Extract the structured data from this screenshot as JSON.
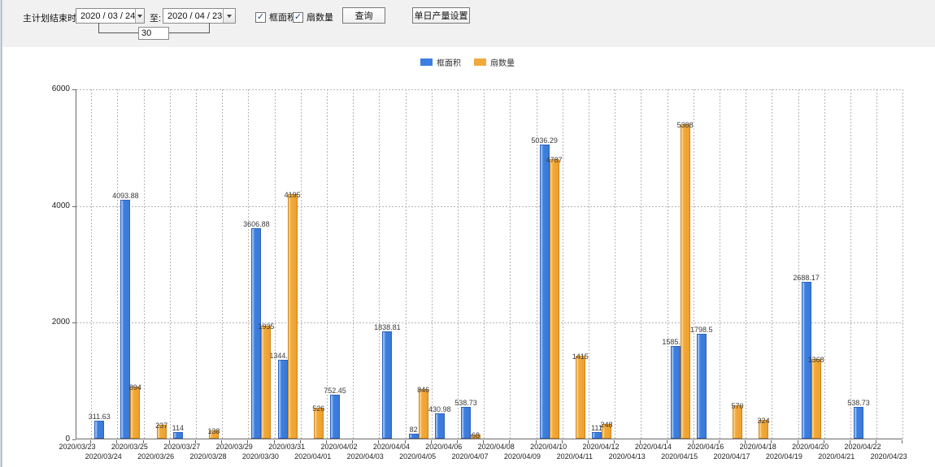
{
  "form": {
    "end_time_label": "主计划结束时间:",
    "date_from": "2020 / 03 / 24",
    "to_label": "至:",
    "date_to": "2020 / 04 / 23",
    "interval_value": "30",
    "series1_checkbox_label": "框面积",
    "series1_checked": true,
    "series2_checkbox_label": "扇数量",
    "series2_checked": true,
    "query_button_label": "查询",
    "daily_output_button_label": "单日产量设置"
  },
  "legend": [
    {
      "label": "框面积",
      "color": "#3d7fe0"
    },
    {
      "label": "扇数量",
      "color": "#f2a93c"
    }
  ],
  "chart_data": {
    "type": "bar",
    "title": "",
    "xlabel": "",
    "ylabel": "",
    "ylim": [
      0,
      6000
    ],
    "yticks": [
      0,
      2000,
      4000,
      6000
    ],
    "grid": true,
    "legend_position": "top-center",
    "categories": [
      "2020/03/23",
      "2020/03/24",
      "2020/03/25",
      "2020/03/26",
      "2020/03/27",
      "2020/03/28",
      "2020/03/29",
      "2020/03/30",
      "2020/03/31",
      "2020/04/01",
      "2020/04/02",
      "2020/04/03",
      "2020/04/04",
      "2020/04/05",
      "2020/04/06",
      "2020/04/07",
      "2020/04/08",
      "2020/04/09",
      "2020/04/10",
      "2020/04/11",
      "2020/04/12",
      "2020/04/13",
      "2020/04/14",
      "2020/04/15",
      "2020/04/16",
      "2020/04/17",
      "2020/04/18",
      "2020/04/19",
      "2020/04/20",
      "2020/04/21",
      "2020/04/22",
      "2020/04/23"
    ],
    "series": [
      {
        "name": "框面积",
        "color": "#3d7fe0",
        "color_light": "#8db6f2",
        "color_dark": "#2d63bd",
        "values": [
          null,
          311.63,
          4093.88,
          null,
          114,
          null,
          null,
          3606.88,
          1344.95,
          null,
          752.45,
          null,
          1838.81,
          82,
          430.98,
          538.73,
          null,
          null,
          5036.29,
          null,
          111,
          null,
          null,
          1585.96,
          1798.5,
          null,
          null,
          null,
          2688.17,
          null,
          538.73,
          null
        ]
      },
      {
        "name": "扇数量",
        "color": "#f2a93c",
        "color_light": "#fbd08a",
        "color_dark": "#c9851f",
        "values": [
          null,
          null,
          894,
          237,
          null,
          138,
          null,
          1935,
          4195,
          526,
          null,
          null,
          null,
          846,
          null,
          68,
          null,
          null,
          4787,
          1415,
          248,
          null,
          null,
          5388,
          null,
          570,
          324,
          null,
          1368,
          null,
          null,
          null
        ]
      }
    ]
  }
}
